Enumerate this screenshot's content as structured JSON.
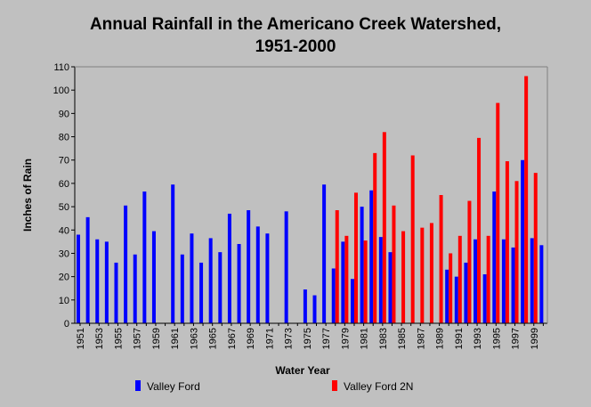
{
  "chart_data": {
    "type": "bar",
    "title_lines": [
      "Annual Rainfall in the Americano Creek Watershed,",
      "1951-2000"
    ],
    "xlabel": "Water Year",
    "ylabel": "Inches of Rain",
    "ylim": [
      0,
      110
    ],
    "yticks": [
      0,
      10,
      20,
      30,
      40,
      50,
      60,
      70,
      80,
      90,
      100,
      110
    ],
    "x_tick_labels": [
      "1951",
      "1953",
      "1955",
      "1957",
      "1959",
      "1961",
      "1963",
      "1965",
      "1967",
      "1969",
      "1971",
      "1973",
      "1975",
      "1977",
      "1979",
      "1981",
      "1983",
      "1985",
      "1987",
      "1989",
      "1991",
      "1993",
      "1995",
      "1997",
      "1999"
    ],
    "grid": false,
    "legend_position": "bottom",
    "categories": [
      1951,
      1952,
      1953,
      1954,
      1955,
      1956,
      1957,
      1958,
      1959,
      1960,
      1961,
      1962,
      1963,
      1964,
      1965,
      1966,
      1967,
      1968,
      1969,
      1970,
      1971,
      1972,
      1973,
      1974,
      1975,
      1976,
      1977,
      1978,
      1979,
      1980,
      1981,
      1982,
      1983,
      1984,
      1985,
      1986,
      1987,
      1988,
      1989,
      1990,
      1991,
      1992,
      1993,
      1994,
      1995,
      1996,
      1997,
      1998,
      1999,
      2000
    ],
    "series": [
      {
        "name": "Valley Ford",
        "color": "#0000ff",
        "values": [
          38,
          45.5,
          36,
          35,
          26,
          50.5,
          29.5,
          56.5,
          39.5,
          null,
          59.5,
          29.5,
          38.5,
          26,
          36.5,
          30.5,
          47,
          34,
          48.5,
          41.5,
          38.5,
          null,
          48,
          null,
          14.5,
          12,
          59.5,
          23.5,
          35,
          19,
          50,
          57,
          37,
          30.5,
          null,
          null,
          null,
          null,
          null,
          23,
          20,
          26,
          36,
          21,
          56.5,
          36,
          32.5,
          70,
          36.5,
          33.5
        ]
      },
      {
        "name": "Valley Ford 2N",
        "color": "#ff0000",
        "values": [
          null,
          null,
          null,
          null,
          null,
          null,
          null,
          null,
          null,
          null,
          null,
          null,
          null,
          null,
          null,
          null,
          null,
          null,
          null,
          null,
          null,
          null,
          null,
          null,
          null,
          null,
          null,
          48.5,
          37.5,
          56,
          35.5,
          73,
          82,
          50.5,
          39.5,
          72,
          41,
          43,
          55,
          30,
          37.5,
          52.5,
          79.5,
          37.5,
          94.5,
          69.5,
          61,
          106,
          64.5,
          null
        ]
      }
    ]
  }
}
